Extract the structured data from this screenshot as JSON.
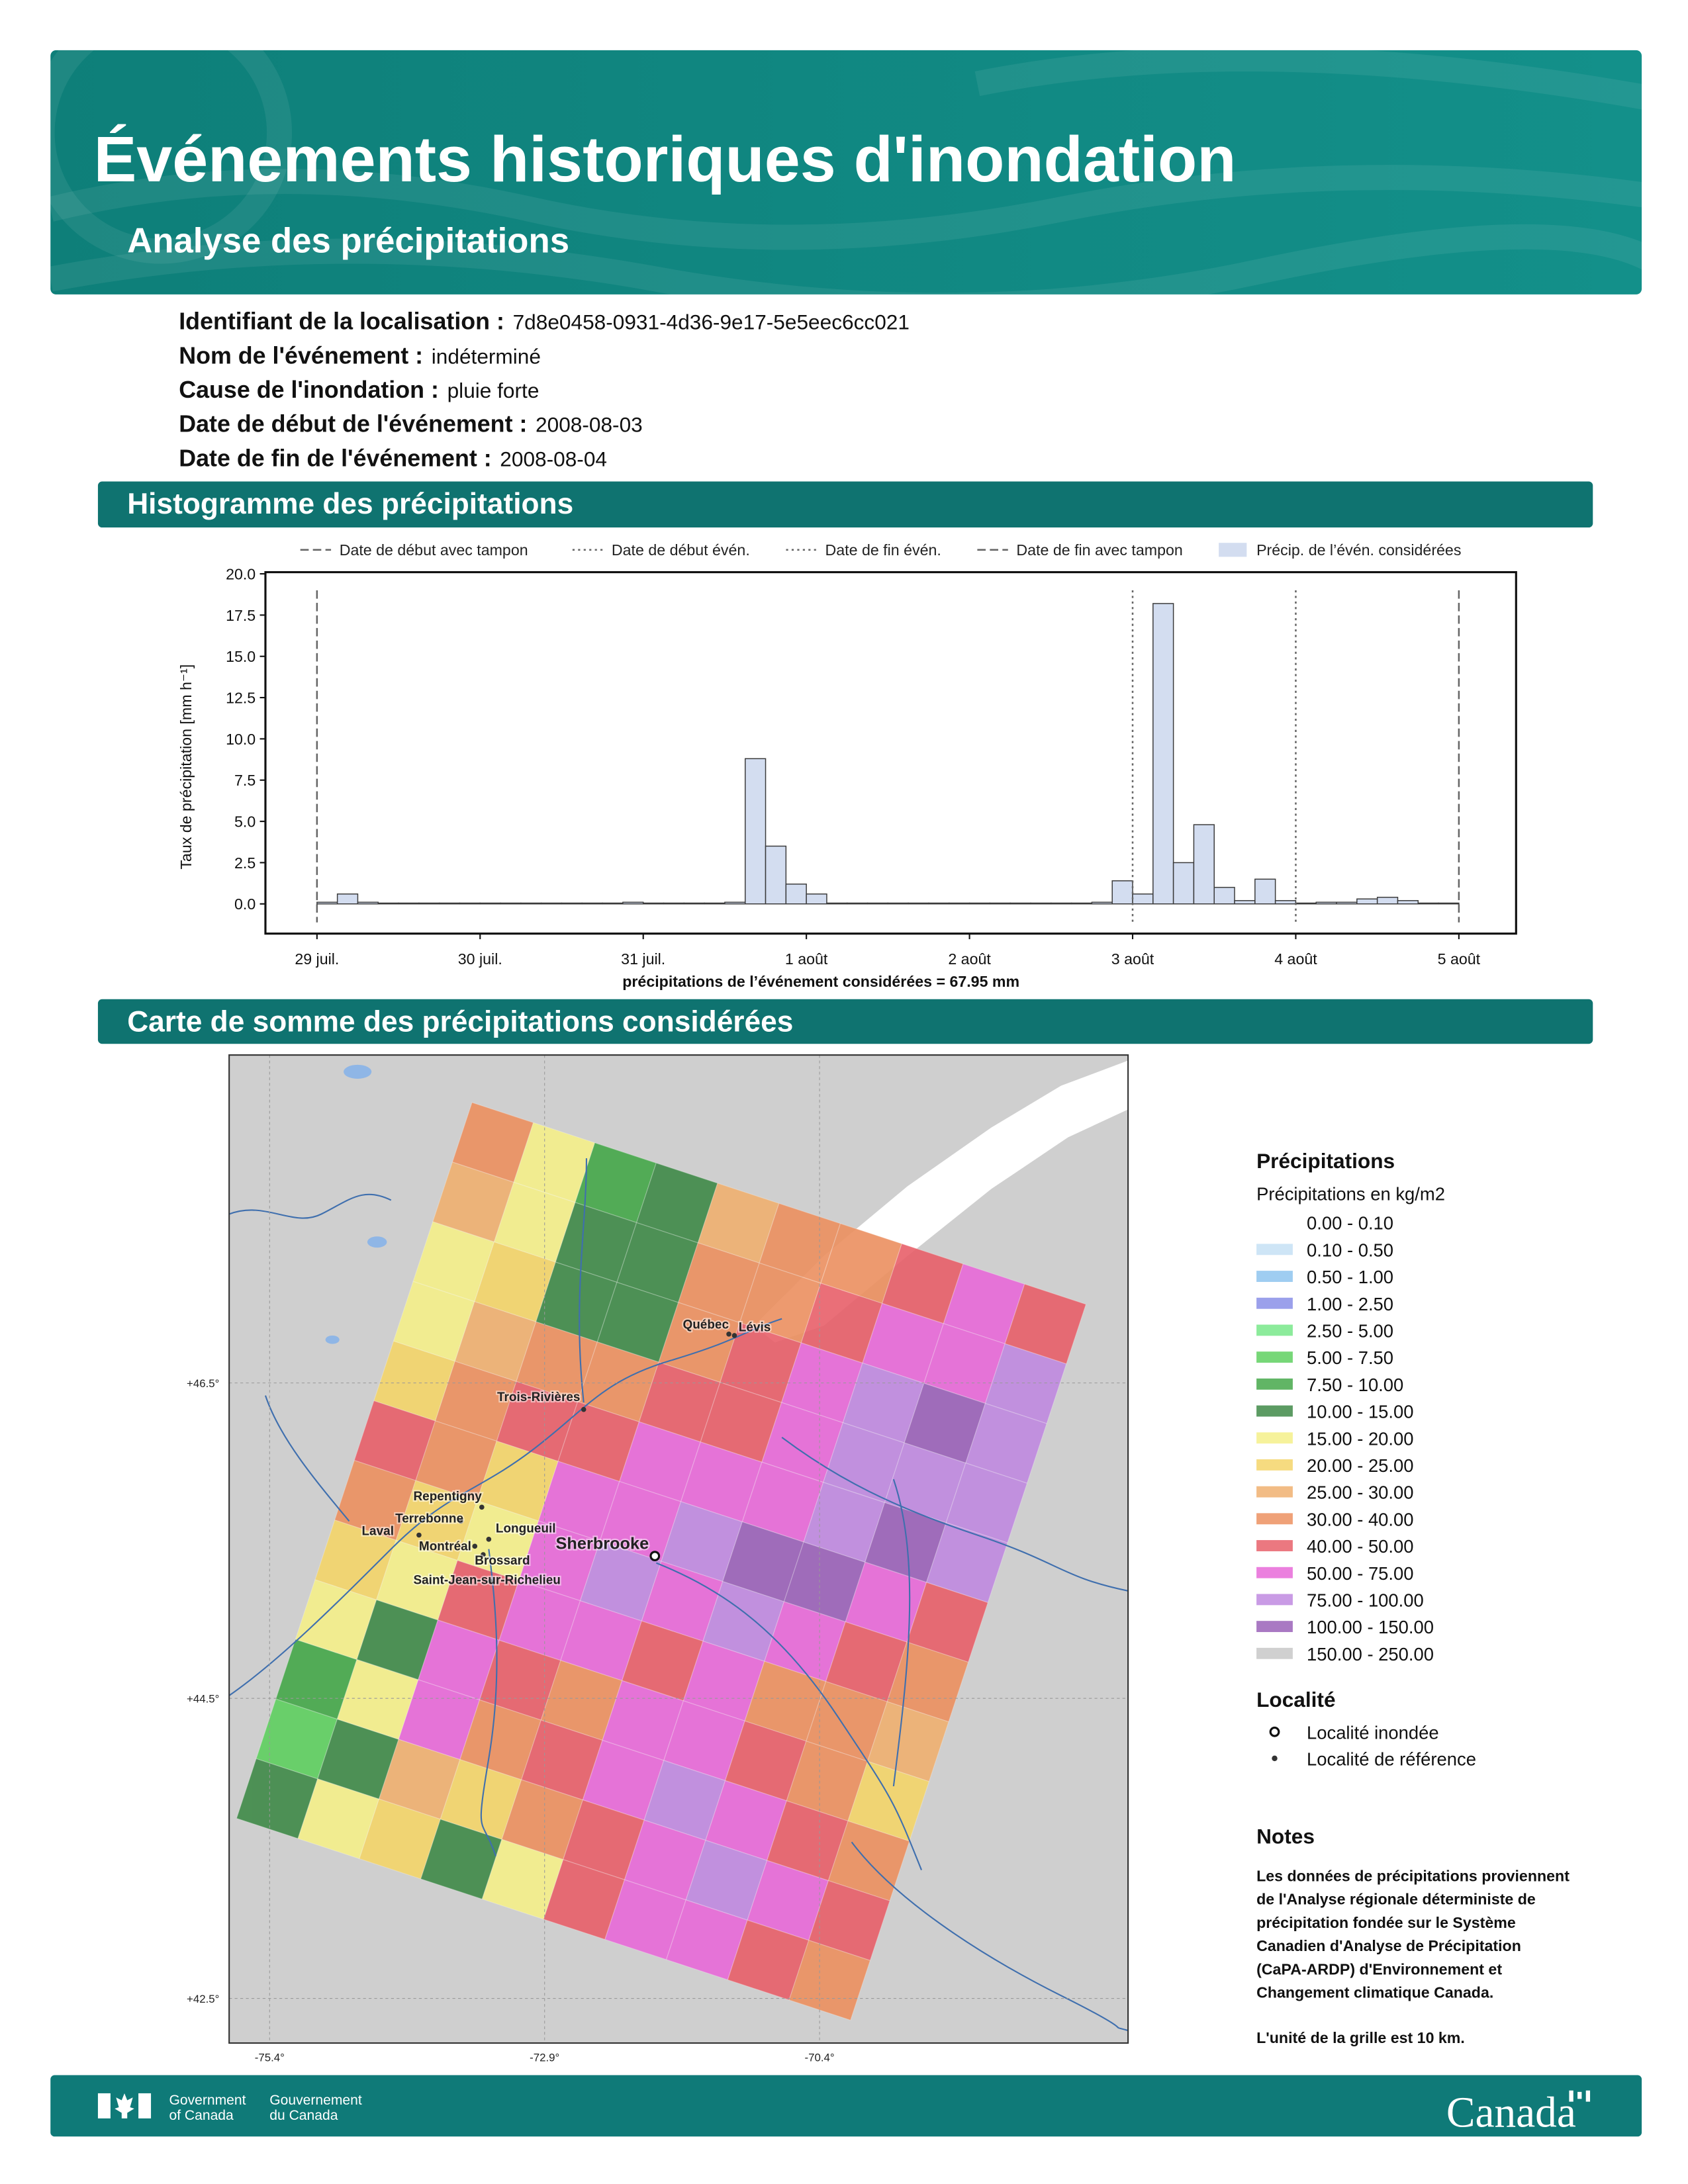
{
  "header": {
    "title": "Événements historiques d'inondation",
    "subtitle": "Analyse des précipitations"
  },
  "info": [
    {
      "label": "Identifiant de la localisation :",
      "value": "7d8e0458-0931-4d36-9e17-5e5eec6cc021"
    },
    {
      "label": "Nom de l'événement :",
      "value": "indéterminé"
    },
    {
      "label": "Cause de l'inondation :",
      "value": "pluie forte"
    },
    {
      "label": "Date de début de l'événement :",
      "value": "2008-08-03"
    },
    {
      "label": "Date de fin de l'événement :",
      "value": "2008-08-04"
    }
  ],
  "sections": {
    "histogram": "Histogramme des précipitations",
    "map": "Carte de somme des précipitations considérées"
  },
  "chart_data": {
    "type": "histogram",
    "name": "Précip. de l’évén. considérées",
    "ylabel": "Taux de précipitation [mm h⁻¹]",
    "xlabel": "précipitations de l’événement considérées = 67.95 mm",
    "color": "#d3ddf0",
    "edgecolor": "#3a3a3a",
    "bins": [
      "07-29 00:00",
      "07-29 03:00",
      "07-29 06:00",
      "07-29 09:00",
      "07-29 12:00",
      "07-29 15:00",
      "07-29 18:00",
      "07-29 21:00",
      "07-30 00:00",
      "07-30 03:00",
      "07-30 06:00",
      "07-30 09:00",
      "07-30 12:00",
      "07-30 15:00",
      "07-30 18:00",
      "07-30 21:00",
      "07-31 00:00",
      "07-31 03:00",
      "07-31 06:00",
      "07-31 09:00",
      "07-31 12:00",
      "07-31 15:00",
      "07-31 18:00",
      "07-31 21:00",
      "08-01 00:00",
      "08-01 03:00",
      "08-01 06:00",
      "08-01 09:00",
      "08-01 12:00",
      "08-01 15:00",
      "08-01 18:00",
      "08-01 21:00",
      "08-02 00:00",
      "08-02 03:00",
      "08-02 06:00",
      "08-02 09:00",
      "08-02 12:00",
      "08-02 15:00",
      "08-02 18:00",
      "08-02 21:00",
      "08-03 00:00",
      "08-03 03:00",
      "08-03 06:00",
      "08-03 09:00",
      "08-03 12:00",
      "08-03 15:00",
      "08-03 18:00",
      "08-03 21:00",
      "08-04 00:00",
      "08-04 03:00",
      "08-04 06:00",
      "08-04 09:00",
      "08-04 12:00",
      "08-04 15:00",
      "08-04 18:00",
      "08-04 21:00",
      "08-05 00:00"
    ],
    "values": [
      0.1,
      0.6,
      0.1,
      0.05,
      0.05,
      0.05,
      0.05,
      0.05,
      0.05,
      0.05,
      0.05,
      0.05,
      0.05,
      0.05,
      0.05,
      0.1,
      0.05,
      0.05,
      0.05,
      0.05,
      0.1,
      8.8,
      3.5,
      1.2,
      0.6,
      0.05,
      0.05,
      0.05,
      0.05,
      0.05,
      0.05,
      0.05,
      0.05,
      0.05,
      0.05,
      0.05,
      0.05,
      0.05,
      0.1,
      1.4,
      0.6,
      18.2,
      2.5,
      4.8,
      1.0,
      0.2,
      1.5,
      0.2,
      0.05,
      0.1,
      0.1,
      0.3,
      0.4,
      0.2,
      0.05,
      0.05
    ],
    "ylim": [
      -1.8,
      20.1
    ],
    "yticks": [
      {
        "value": 0,
        "label": "0.0"
      },
      2.5,
      {
        "value": 5,
        "label": "5.0"
      },
      7.5,
      {
        "value": 10,
        "label": "10.0"
      },
      12.5,
      {
        "value": 15,
        "label": "15.0"
      },
      17.5,
      {
        "value": 20,
        "label": "20.0"
      }
    ],
    "xlim": [
      "07-28 16:25",
      "08-05 08:25"
    ],
    "xticks": [
      {
        "value": "07-29 00:00",
        "label": "29 juil."
      },
      {
        "value": "07-30 00:00",
        "label": "30 juil."
      },
      {
        "value": "07-31 00:00",
        "label": "31 juil."
      },
      {
        "value": "08-01 00:00",
        "label": "1 août"
      },
      {
        "value": "08-02 00:00",
        "label": "2 août"
      },
      {
        "value": "08-03 00:00",
        "label": "3 août"
      },
      {
        "value": "08-04 00:00",
        "label": "4 août"
      },
      {
        "value": "08-05 00:00",
        "label": "5 août"
      }
    ],
    "vlines": [
      {
        "label": "Date de début avec tampon",
        "x": "07-29 00:00",
        "style": "dashed"
      },
      {
        "label": "Date de début évén.",
        "x": "08-03 00:00",
        "style": "dotted"
      },
      {
        "label": "Date de fin évén.",
        "x": "08-04 00:00",
        "style": "dotted"
      },
      {
        "label": "Date de fin avec tampon",
        "x": "08-05 00:00",
        "style": "dashed"
      }
    ]
  },
  "map": {
    "legend_title": "Précipitations",
    "legend_subtitle": "Précipitations en kg/m2",
    "classes": [
      {
        "label": "0.00 - 0.10",
        "color": "#ffffff"
      },
      {
        "label": "0.10 - 0.50",
        "color": "#c6e0f5"
      },
      {
        "label": "0.50 - 1.00",
        "color": "#8ec4ee"
      },
      {
        "label": "1.00 - 2.50",
        "color": "#8a8fe8"
      },
      {
        "label": "2.50 - 5.00",
        "color": "#78e88a"
      },
      {
        "label": "5.00 - 7.50",
        "color": "#5fd060"
      },
      {
        "label": "7.50 - 10.00",
        "color": "#45a84a"
      },
      {
        "label": "10.00 - 15.00",
        "color": "#3f8a48"
      },
      {
        "label": "15.00 - 20.00",
        "color": "#f5f08a"
      },
      {
        "label": "20.00 - 25.00",
        "color": "#f4d56a"
      },
      {
        "label": "25.00 - 30.00",
        "color": "#f0b070"
      },
      {
        "label": "30.00 - 40.00",
        "color": "#ec9060"
      },
      {
        "label": "40.00 - 50.00",
        "color": "#e8606a"
      },
      {
        "label": "50.00 - 75.00",
        "color": "#e86ad8"
      },
      {
        "label": "75.00 - 100.00",
        "color": "#c08ae0"
      },
      {
        "label": "100.00 - 150.00",
        "color": "#9a62b8"
      },
      {
        "label": "150.00 - 250.00",
        "color": "#c8c8c8"
      }
    ],
    "grid": [
      [
        11,
        8,
        6,
        7,
        10,
        11,
        11,
        12,
        13,
        12
      ],
      [
        10,
        8,
        7,
        7,
        11,
        11,
        12,
        13,
        13,
        14
      ],
      [
        8,
        9,
        7,
        7,
        11,
        12,
        13,
        14,
        15,
        14
      ],
      [
        8,
        10,
        11,
        11,
        12,
        12,
        13,
        14,
        14,
        14
      ],
      [
        9,
        11,
        12,
        12,
        13,
        13,
        13,
        14,
        15,
        14
      ],
      [
        12,
        11,
        9,
        13,
        13,
        14,
        15,
        15,
        13,
        12
      ],
      [
        11,
        9,
        8,
        13,
        14,
        13,
        14,
        13,
        12,
        11
      ],
      [
        9,
        8,
        12,
        13,
        13,
        12,
        13,
        11,
        11,
        10
      ],
      [
        8,
        7,
        13,
        12,
        11,
        13,
        13,
        12,
        11,
        9
      ],
      [
        6,
        8,
        13,
        11,
        12,
        13,
        14,
        13,
        12,
        11
      ],
      [
        5,
        7,
        10,
        9,
        11,
        12,
        13,
        14,
        13,
        12
      ],
      [
        7,
        8,
        9,
        7,
        8,
        12,
        13,
        13,
        12,
        11
      ]
    ],
    "lat_labels": [
      "+46.5°",
      "+44.5°",
      "+42.5°"
    ],
    "lon_labels": [
      "-75.4°",
      "-72.9°",
      "-70.4°"
    ],
    "places": [
      {
        "name": "Québec",
        "flooded": false
      },
      {
        "name": "Lévis",
        "flooded": false
      },
      {
        "name": "Trois-Rivières",
        "flooded": false
      },
      {
        "name": "Repentigny",
        "flooded": false
      },
      {
        "name": "Terrebonne",
        "flooded": false
      },
      {
        "name": "Laval",
        "flooded": false
      },
      {
        "name": "Montréal",
        "flooded": false
      },
      {
        "name": "Longueuil",
        "flooded": false
      },
      {
        "name": "Brossard",
        "flooded": false
      },
      {
        "name": "Saint-Jean-sur-Richelieu",
        "flooded": false
      },
      {
        "name": "Sherbrooke",
        "flooded": true
      }
    ],
    "locality_title": "Localité",
    "locality_items": [
      "Localité inondée",
      "Localité de référence"
    ],
    "notes_title": "Notes",
    "notes_lines": [
      "Les données de précipitations proviennent",
      "de l'Analyse régionale déterministe de",
      "précipitation fondée sur le Système",
      "Canadien d'Analyse de Précipitation",
      "(CaPA-ARDP) d'Environnement et",
      "Changement climatique Canada."
    ],
    "notes_extra": "L'unité de la grille est 10 km."
  },
  "footer": {
    "gov_en": [
      "Government",
      "of Canada"
    ],
    "gov_fr": [
      "Gouvernement",
      "du Canada"
    ],
    "wordmark": "Canada"
  }
}
